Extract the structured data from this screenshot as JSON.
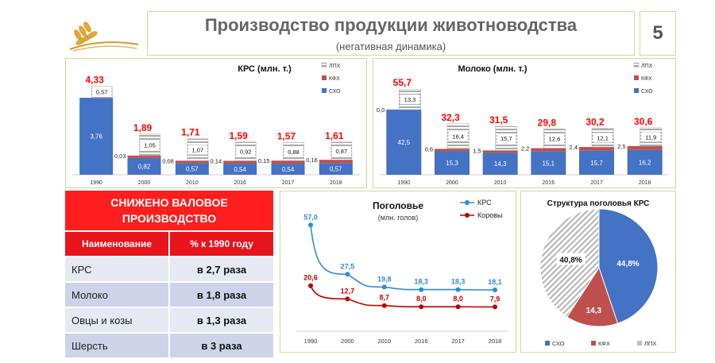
{
  "header": {
    "title": "Производство продукции животноводства",
    "subtitle": "(негативная динамика)",
    "page_number": "5"
  },
  "table": {
    "heading": "СНИЖЕНО ВАЛОВОЕ ПРОИЗВОДСТВО",
    "col_name": "Наименование",
    "col_value": "% к 1990 году",
    "rows": [
      {
        "name": "КРС",
        "value": "в 2,7 раза"
      },
      {
        "name": "Молоко",
        "value": "в 1,8 раза"
      },
      {
        "name": "Овцы и козы",
        "value": "в 1,3 раза"
      },
      {
        "name": "Шерсть",
        "value": "в 3 раза"
      }
    ]
  },
  "colors": {
    "sho": "#4472c4",
    "kfh": "#c0504d",
    "lph": "#bfbfbf",
    "total": "#ff0000",
    "krs_line": "#2e8bd4",
    "cows_line": "#c00000",
    "table_red": "#ff1e1e"
  },
  "chart_data": [
    {
      "type": "bar",
      "title": "КРС (млн. т.)",
      "stacked": true,
      "categories": [
        "1990",
        "2000",
        "2010",
        "2016",
        "2017",
        "2018"
      ],
      "series": [
        {
          "name": "СХО",
          "values": [
            3.76,
            0.82,
            0.57,
            0.54,
            0.54,
            0.57
          ],
          "labels": [
            "3,76",
            "0,82",
            "0,57",
            "0,54",
            "0,54",
            "0,57"
          ]
        },
        {
          "name": "КФХ",
          "values": [
            0.0,
            0.03,
            0.08,
            0.14,
            0.15,
            0.16
          ],
          "labels": [
            "",
            "0,03",
            "0,08",
            "0,14",
            "0,15",
            "0,16"
          ]
        },
        {
          "name": "ЛПХ",
          "values": [
            0.57,
            1.05,
            1.07,
            0.92,
            0.88,
            0.87
          ],
          "labels": [
            "0,57",
            "1,05",
            "1,07",
            "0,92",
            "0,88",
            "0,87"
          ]
        }
      ],
      "totals": [
        "4,33",
        "1,89",
        "1,71",
        "1,59",
        "1,57",
        "1,61"
      ],
      "legend_position": "top-right"
    },
    {
      "type": "bar",
      "title": "Молоко (млн. т.)",
      "stacked": true,
      "categories": [
        "1990",
        "2000",
        "2010",
        "2016",
        "2017",
        "2018"
      ],
      "series": [
        {
          "name": "СХО",
          "values": [
            42.5,
            15.3,
            14.3,
            15.1,
            15.7,
            16.2
          ],
          "labels": [
            "42,5",
            "15,3",
            "14,3",
            "15,1",
            "15,7",
            "16,2"
          ]
        },
        {
          "name": "КФХ",
          "values": [
            0.0,
            0.6,
            1.5,
            2.2,
            2.4,
            2.5
          ],
          "labels": [
            "0,0",
            "0,6",
            "1,5",
            "2,2",
            "2,4",
            "2,5"
          ]
        },
        {
          "name": "ЛПХ",
          "values": [
            13.3,
            16.4,
            15.7,
            12.6,
            12.1,
            11.9
          ],
          "labels": [
            "13,3",
            "16,4",
            "15,7",
            "12,6",
            "12,1",
            "11,9"
          ]
        }
      ],
      "totals": [
        "55,7",
        "32,3",
        "31,5",
        "29,8",
        "30,2",
        "30,6"
      ],
      "legend_position": "top-right"
    },
    {
      "type": "line",
      "title": "Поголовье",
      "subtitle": "(млн. голов)",
      "x": [
        "1990",
        "2000",
        "2010",
        "2016",
        "2017",
        "2018"
      ],
      "series": [
        {
          "name": "КРС",
          "values": [
            57.0,
            27.5,
            19.8,
            18.3,
            18.3,
            18.1
          ],
          "labels": [
            "57,0",
            "27,5",
            "19,8",
            "18,3",
            "18,3",
            "18,1"
          ]
        },
        {
          "name": "Коровы",
          "values": [
            20.6,
            12.7,
            8.7,
            8.0,
            8.0,
            7.9
          ],
          "labels": [
            "20,6",
            "12,7",
            "8,7",
            "8,0",
            "8,0",
            "7,9"
          ]
        }
      ],
      "legend_position": "top-right"
    },
    {
      "type": "pie",
      "title": "Структура поголовья КРС",
      "categories": [
        "СХО",
        "КФХ",
        "ЛПХ"
      ],
      "values": [
        44.8,
        14.3,
        40.8
      ],
      "labels": [
        "44,8%",
        "14,3",
        "40,8%"
      ],
      "legend_position": "bottom"
    }
  ]
}
